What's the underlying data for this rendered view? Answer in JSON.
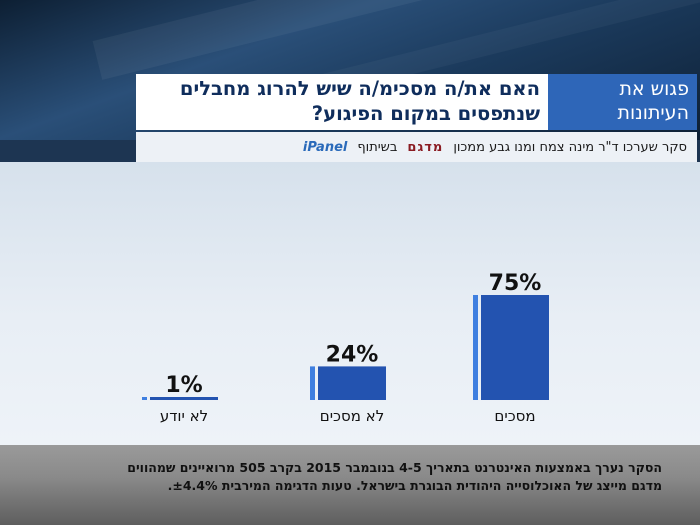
{
  "header": {
    "brand": "פגוש את העיתונות",
    "question_line1": "האם את/ה מסכימ/ה שיש להרוג מחבלים",
    "question_line2": "שנתפסים במקום הפיגוע?",
    "survey_credit": "סקר שערכו ד\"ר מינה צמח ומנו גבע ממכון",
    "institute_logo": "מדגם",
    "partner_word": "בשיתוף",
    "partner_logo": "iPanel"
  },
  "footer": {
    "line1": "הסקר נערך באמצעות האינטרנט בתאריך 4-5 בנובמבר 2015 בקרב 505 מרואיינים שמהווים",
    "line2": "מדגם מייצג של האוכלוסייה היהודית הבוגרת בישראל. טעות הדגימה המירבית ±4.4%."
  },
  "chart_data": {
    "type": "bar",
    "title": "האם את/ה מסכימ/ה שיש להרוג מחבלים שנתפסים במקום הפיגוע?",
    "categories": [
      "מסכים",
      "לא מסכים",
      "לא יודע"
    ],
    "values": [
      75,
      24,
      1
    ],
    "value_labels": [
      "75%",
      "24%",
      "1%"
    ],
    "unit": "%",
    "ylim": [
      0,
      100
    ],
    "grid": false,
    "legend": "none",
    "bar_color": "#2353b0",
    "bar_accent_color": "#3f7fe0"
  }
}
